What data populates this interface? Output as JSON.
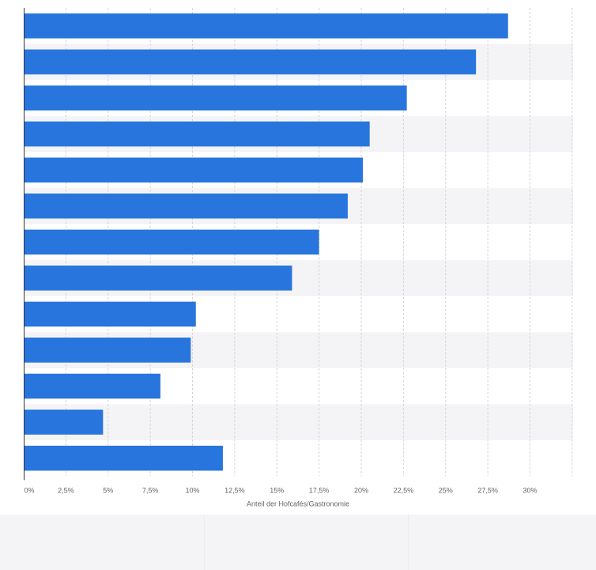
{
  "chart_data": {
    "type": "bar",
    "orientation": "horizontal",
    "categories": [
      "",
      "",
      "",
      "",
      "",
      "",
      "",
      "",
      "",
      "",
      "",
      "",
      ""
    ],
    "values": [
      28.7,
      26.8,
      22.7,
      20.5,
      20.1,
      19.2,
      17.5,
      15.9,
      10.2,
      9.9,
      8.1,
      4.7,
      11.8
    ],
    "xlabel": "Anteil der Hofcafés/Gastronomie",
    "ylabel": "",
    "xlim": [
      0,
      32.5
    ],
    "x_ticks": [
      "0%",
      "2,5%",
      "5%",
      "7,5%",
      "10%",
      "12,5%",
      "15%",
      "17,5%",
      "20%",
      "22,5%",
      "25%",
      "27,5%",
      "30%"
    ],
    "x_tick_values": [
      0,
      2.5,
      5,
      7.5,
      10,
      12.5,
      15,
      17.5,
      20,
      22.5,
      25,
      27.5,
      30
    ],
    "grid": true,
    "legend": "none",
    "colors": {
      "bar": "#2876dd",
      "stripe_light": "#ffffff",
      "stripe_dark": "#f4f4f6",
      "grid": "#d6d6d6",
      "axis": "#333333"
    }
  }
}
